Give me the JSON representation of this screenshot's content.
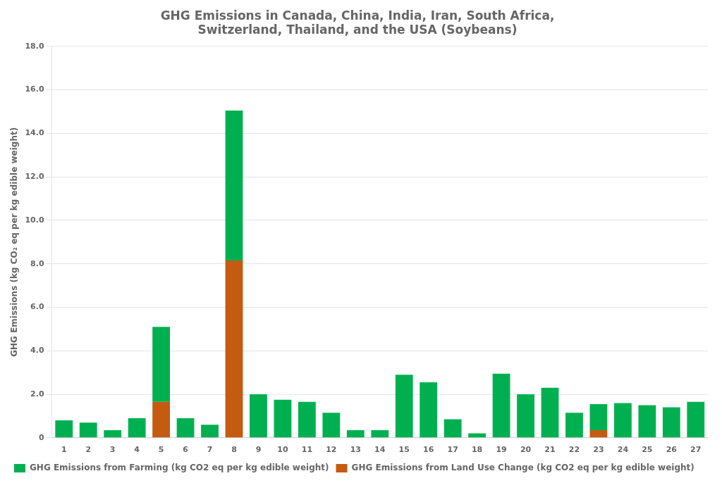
{
  "chart_data": {
    "type": "bar",
    "title": [
      "GHG Emissions in Canada, China, India, Iran, South Africa,",
      "Switzerland, Thailand, and the USA (Soybeans)"
    ],
    "y_label": "GHG Emissions (kg CO₂ eq per kg edible weight)",
    "categories": [
      "1",
      "2",
      "3",
      "4",
      "5",
      "6",
      "7",
      "8",
      "9",
      "10",
      "11",
      "12",
      "13",
      "14",
      "15",
      "16",
      "17",
      "18",
      "19",
      "20",
      "21",
      "22",
      "23",
      "24",
      "25",
      "26",
      "27"
    ],
    "series": [
      {
        "name": "GHG Emissions from Land Use Change (kg CO2 eq per kg edible weight)",
        "color": "#c55a11",
        "values": [
          0,
          0,
          0,
          0,
          1.65,
          0,
          0,
          8.15,
          0,
          0,
          0,
          0,
          0,
          0,
          0,
          0,
          0,
          0,
          0,
          0,
          0,
          0,
          0.35,
          0,
          0,
          0,
          0
        ]
      },
      {
        "name": "GHG Emissions from Farming (kg CO2 eq per kg edible weight)",
        "color": "#00b050",
        "values": [
          0.8,
          0.7,
          0.35,
          0.9,
          3.45,
          0.9,
          0.6,
          6.9,
          2.0,
          1.75,
          1.65,
          1.15,
          0.35,
          0.35,
          2.9,
          2.55,
          0.85,
          0.2,
          2.95,
          2.0,
          2.3,
          1.15,
          1.2,
          1.6,
          1.5,
          1.4,
          1.65
        ]
      }
    ],
    "stacked": true,
    "ylim": [
      0,
      18.0
    ],
    "yticks": [
      0,
      {
        "value": 2.0,
        "label": "2.0"
      },
      {
        "value": 4.0,
        "label": "4.0"
      },
      {
        "value": 6.0,
        "label": "6.0"
      },
      {
        "value": 8.0,
        "label": "8.0"
      },
      {
        "value": 10.0,
        "label": "10.0"
      },
      {
        "value": 12.0,
        "label": "12.0"
      },
      {
        "value": 14.0,
        "label": "14.0"
      },
      {
        "value": 16.0,
        "label": "16.0"
      },
      {
        "value": 18.0,
        "label": "18.0"
      }
    ],
    "grid": true,
    "legend": "bottom"
  }
}
